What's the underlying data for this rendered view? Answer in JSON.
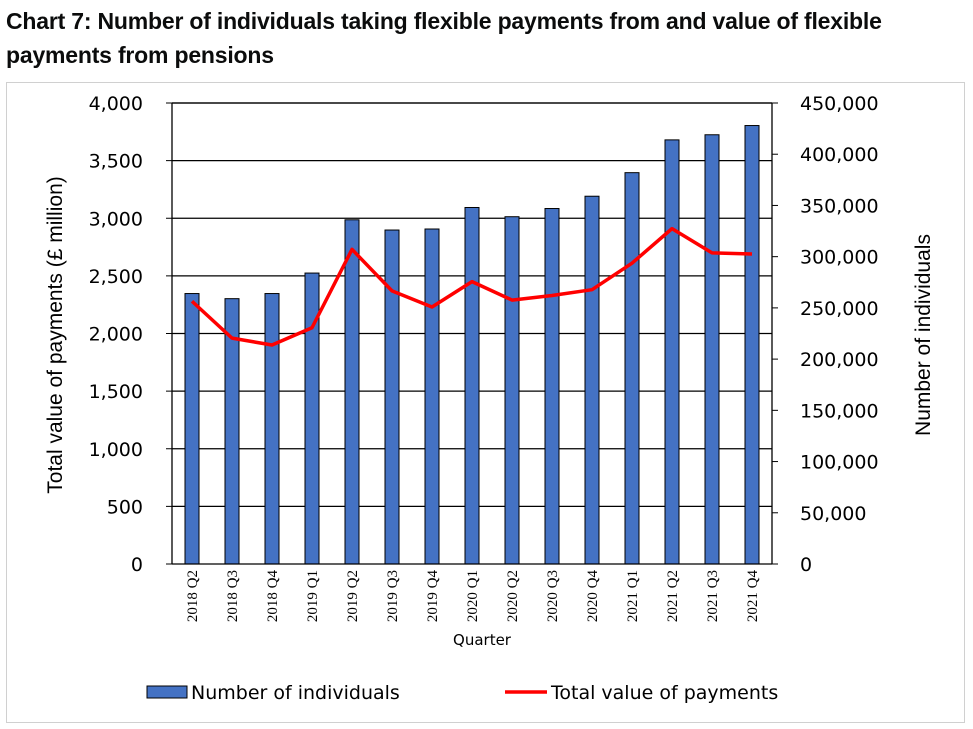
{
  "page": {
    "title": "Chart 7: Number of individuals taking flexible payments from and value of flexible payments from pensions"
  },
  "colors": {
    "bar": "#4472c4",
    "bar_stroke": "#000000",
    "line": "#ff0000"
  },
  "chart_data": {
    "type": "bar",
    "categories": [
      "2018 Q2",
      "2018 Q3",
      "2018 Q4",
      "2019 Q1",
      "2019 Q2",
      "2019 Q3",
      "2019 Q4",
      "2020 Q1",
      "2020 Q2",
      "2020 Q3",
      "2020 Q4",
      "2021 Q1",
      "2021 Q2",
      "2021 Q3",
      "2021 Q4"
    ],
    "xlabel": "Quarter",
    "ylabel_left": "Total value of payments (£ million)",
    "ylabel_right": "Number of individuals",
    "ylim_left": [
      0,
      4000
    ],
    "ylim_right": [
      0,
      450000
    ],
    "yticks_left": [
      "0",
      "500",
      "1,000",
      "1,500",
      "2,000",
      "2,500",
      "3,000",
      "3,500",
      "4,000"
    ],
    "yticks_right": [
      "0",
      "50,000",
      "100,000",
      "150,000",
      "200,000",
      "250,000",
      "300,000",
      "350,000",
      "400,000",
      "450,000"
    ],
    "grid": true,
    "legend_position": "bottom",
    "series": [
      {
        "name": "Number of individuals",
        "type": "bar",
        "axis": "right",
        "values": [
          264000,
          259000,
          264000,
          284000,
          336000,
          326000,
          327000,
          348000,
          339000,
          347000,
          359000,
          382000,
          414000,
          419000,
          428000
        ]
      },
      {
        "name": "Total value of payments",
        "type": "line",
        "axis": "left",
        "values": [
          2280,
          1960,
          1900,
          2050,
          2730,
          2370,
          2230,
          2450,
          2290,
          2330,
          2380,
          2610,
          2910,
          2700,
          2690
        ]
      }
    ]
  }
}
